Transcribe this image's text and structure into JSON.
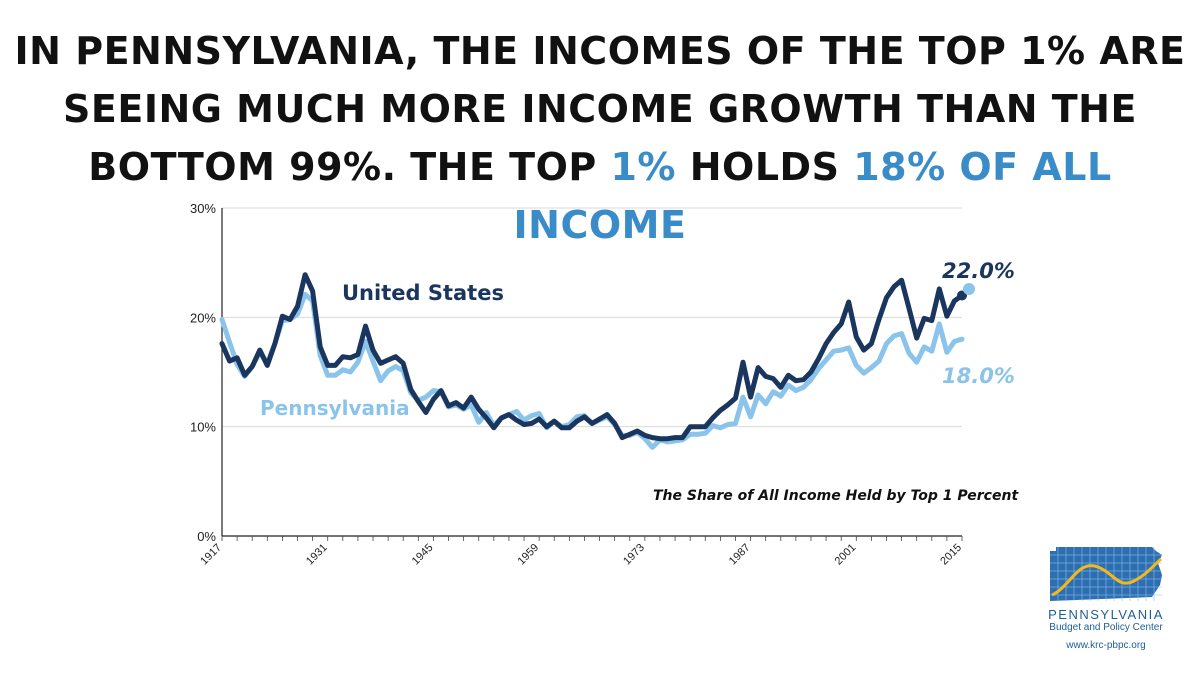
{
  "headline": {
    "line1": "IN PENNSYLVANIA, THE INCOMES OF THE TOP 1% ARE",
    "line2": "SEEING MUCH MORE INCOME GROWTH THAN THE",
    "line3_a": "BOTTOM 99%. THE TOP ",
    "line3_b": "1%",
    "line3_c": " HOLDS ",
    "line3_d": "18% OF ALL INCOME"
  },
  "logo": {
    "org_name": "PENNSYLVANIA",
    "org_sub": "Budget and Policy Center",
    "url": "www.krc-pbpc.org"
  },
  "colors": {
    "us": "#1a365f",
    "pa": "#8ac4ea",
    "highlight": "#3a8cc8",
    "grid": "#d9d9d9",
    "logo": "#1e5f96"
  },
  "chart_data": {
    "type": "line",
    "title": "The Share of All Income Held by Top 1 Percent",
    "xlabel": "",
    "ylabel": "",
    "x_ticks": [
      "1917",
      "1931",
      "1945",
      "1959",
      "1973",
      "1987",
      "2001",
      "2015"
    ],
    "y_ticks": [
      "0%",
      "10%",
      "20%",
      "30%"
    ],
    "xlim": [
      1917,
      2015
    ],
    "ylim": [
      0,
      30
    ],
    "grid": "horizontal",
    "series": [
      {
        "name": "United States",
        "end_label": "22.0%",
        "color": "#1a365f",
        "points": [
          [
            1917,
            17.6
          ],
          [
            1918,
            16.0
          ],
          [
            1919,
            16.3
          ],
          [
            1920,
            14.7
          ],
          [
            1921,
            15.5
          ],
          [
            1922,
            17.0
          ],
          [
            1923,
            15.6
          ],
          [
            1924,
            17.6
          ],
          [
            1925,
            20.1
          ],
          [
            1926,
            19.8
          ],
          [
            1927,
            21.0
          ],
          [
            1928,
            23.9
          ],
          [
            1929,
            22.4
          ],
          [
            1930,
            17.3
          ],
          [
            1931,
            15.6
          ],
          [
            1932,
            15.6
          ],
          [
            1933,
            16.4
          ],
          [
            1934,
            16.3
          ],
          [
            1935,
            16.6
          ],
          [
            1936,
            19.2
          ],
          [
            1937,
            17.0
          ],
          [
            1938,
            15.8
          ],
          [
            1939,
            16.1
          ],
          [
            1940,
            16.4
          ],
          [
            1941,
            15.8
          ],
          [
            1942,
            13.4
          ],
          [
            1943,
            12.3
          ],
          [
            1944,
            11.3
          ],
          [
            1945,
            12.5
          ],
          [
            1946,
            13.3
          ],
          [
            1947,
            11.9
          ],
          [
            1948,
            12.2
          ],
          [
            1949,
            11.7
          ],
          [
            1950,
            12.7
          ],
          [
            1951,
            11.6
          ],
          [
            1952,
            10.8
          ],
          [
            1953,
            9.9
          ],
          [
            1954,
            10.8
          ],
          [
            1955,
            11.1
          ],
          [
            1956,
            10.6
          ],
          [
            1957,
            10.2
          ],
          [
            1958,
            10.3
          ],
          [
            1959,
            10.7
          ],
          [
            1960,
            10.0
          ],
          [
            1961,
            10.5
          ],
          [
            1962,
            9.9
          ],
          [
            1963,
            9.9
          ],
          [
            1964,
            10.5
          ],
          [
            1965,
            10.9
          ],
          [
            1966,
            10.3
          ],
          [
            1967,
            10.7
          ],
          [
            1968,
            11.1
          ],
          [
            1969,
            10.3
          ],
          [
            1970,
            9.0
          ],
          [
            1971,
            9.3
          ],
          [
            1972,
            9.6
          ],
          [
            1973,
            9.2
          ],
          [
            1974,
            9.0
          ],
          [
            1975,
            8.9
          ],
          [
            1976,
            8.9
          ],
          [
            1977,
            9.0
          ],
          [
            1978,
            9.0
          ],
          [
            1979,
            10.0
          ],
          [
            1980,
            10.0
          ],
          [
            1981,
            10.0
          ],
          [
            1982,
            10.8
          ],
          [
            1983,
            11.5
          ],
          [
            1984,
            12.0
          ],
          [
            1985,
            12.6
          ],
          [
            1986,
            15.9
          ],
          [
            1987,
            12.7
          ],
          [
            1988,
            15.4
          ],
          [
            1989,
            14.6
          ],
          [
            1990,
            14.4
          ],
          [
            1991,
            13.6
          ],
          [
            1992,
            14.7
          ],
          [
            1993,
            14.2
          ],
          [
            1994,
            14.3
          ],
          [
            1995,
            15.0
          ],
          [
            1996,
            16.2
          ],
          [
            1997,
            17.6
          ],
          [
            1998,
            18.6
          ],
          [
            1999,
            19.4
          ],
          [
            2000,
            21.4
          ],
          [
            2001,
            18.2
          ],
          [
            2002,
            17.0
          ],
          [
            2003,
            17.6
          ],
          [
            2004,
            19.8
          ],
          [
            2005,
            21.8
          ],
          [
            2006,
            22.8
          ],
          [
            2007,
            23.4
          ],
          [
            2008,
            20.8
          ],
          [
            2009,
            18.1
          ],
          [
            2010,
            19.9
          ],
          [
            2011,
            19.7
          ],
          [
            2012,
            22.6
          ],
          [
            2013,
            20.1
          ],
          [
            2014,
            21.5
          ],
          [
            2015,
            22.0
          ]
        ]
      },
      {
        "name": "Pennsylvania",
        "end_label": "18.0%",
        "color": "#8ac4ea",
        "points": [
          [
            1917,
            19.8
          ],
          [
            1918,
            17.7
          ],
          [
            1919,
            15.7
          ],
          [
            1920,
            14.6
          ],
          [
            1921,
            15.5
          ],
          [
            1922,
            16.8
          ],
          [
            1923,
            15.8
          ],
          [
            1924,
            17.6
          ],
          [
            1925,
            19.7
          ],
          [
            1926,
            19.8
          ],
          [
            1927,
            20.3
          ],
          [
            1928,
            22.1
          ],
          [
            1929,
            21.5
          ],
          [
            1930,
            16.5
          ],
          [
            1931,
            14.7
          ],
          [
            1932,
            14.7
          ],
          [
            1933,
            15.2
          ],
          [
            1934,
            15.0
          ],
          [
            1935,
            15.9
          ],
          [
            1936,
            17.8
          ],
          [
            1937,
            16.0
          ],
          [
            1938,
            14.2
          ],
          [
            1939,
            15.1
          ],
          [
            1940,
            15.5
          ],
          [
            1941,
            15.1
          ],
          [
            1942,
            13.1
          ],
          [
            1943,
            12.4
          ],
          [
            1944,
            12.7
          ],
          [
            1945,
            13.3
          ],
          [
            1946,
            13.2
          ],
          [
            1947,
            11.8
          ],
          [
            1948,
            12.0
          ],
          [
            1949,
            11.6
          ],
          [
            1950,
            12.0
          ],
          [
            1951,
            10.4
          ],
          [
            1952,
            11.3
          ],
          [
            1953,
            10.1
          ],
          [
            1954,
            10.8
          ],
          [
            1955,
            11.1
          ],
          [
            1956,
            11.4
          ],
          [
            1957,
            10.6
          ],
          [
            1958,
            11.0
          ],
          [
            1959,
            11.2
          ],
          [
            1960,
            9.9
          ],
          [
            1961,
            10.5
          ],
          [
            1962,
            10.0
          ],
          [
            1963,
            10.2
          ],
          [
            1964,
            10.9
          ],
          [
            1965,
            11.0
          ],
          [
            1966,
            10.3
          ],
          [
            1967,
            10.6
          ],
          [
            1968,
            10.9
          ],
          [
            1969,
            10.2
          ],
          [
            1970,
            9.2
          ],
          [
            1971,
            9.2
          ],
          [
            1972,
            9.5
          ],
          [
            1973,
            8.9
          ],
          [
            1974,
            8.1
          ],
          [
            1975,
            8.8
          ],
          [
            1976,
            8.6
          ],
          [
            1977,
            8.7
          ],
          [
            1978,
            8.8
          ],
          [
            1979,
            9.3
          ],
          [
            1980,
            9.3
          ],
          [
            1981,
            9.4
          ],
          [
            1982,
            10.1
          ],
          [
            1983,
            9.9
          ],
          [
            1984,
            10.2
          ],
          [
            1985,
            10.3
          ],
          [
            1986,
            12.7
          ],
          [
            1987,
            10.9
          ],
          [
            1988,
            12.9
          ],
          [
            1989,
            12.1
          ],
          [
            1990,
            13.2
          ],
          [
            1991,
            12.8
          ],
          [
            1992,
            13.8
          ],
          [
            1993,
            13.3
          ],
          [
            1994,
            13.6
          ],
          [
            1995,
            14.3
          ],
          [
            1996,
            15.3
          ],
          [
            1997,
            16.1
          ],
          [
            1998,
            16.9
          ],
          [
            1999,
            17.0
          ],
          [
            2000,
            17.2
          ],
          [
            2001,
            15.6
          ],
          [
            2002,
            14.9
          ],
          [
            2003,
            15.4
          ],
          [
            2004,
            16.0
          ],
          [
            2005,
            17.6
          ],
          [
            2006,
            18.3
          ],
          [
            2007,
            18.5
          ],
          [
            2008,
            16.7
          ],
          [
            2009,
            15.9
          ],
          [
            2010,
            17.3
          ],
          [
            2011,
            16.9
          ],
          [
            2012,
            19.4
          ],
          [
            2013,
            16.8
          ],
          [
            2014,
            17.8
          ],
          [
            2015,
            18.0
          ]
        ]
      }
    ]
  }
}
